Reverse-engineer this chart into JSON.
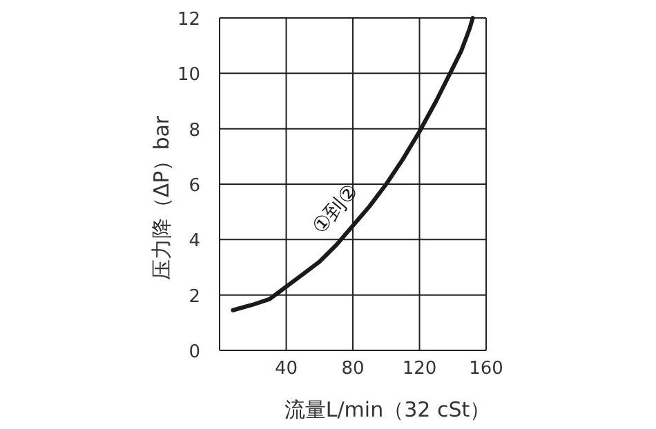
{
  "chart_data": {
    "type": "line",
    "xlabel": "流量L/min（32 cSt）",
    "ylabel": "压力降（ΔP）bar",
    "xlim": [
      0,
      160
    ],
    "ylim": [
      0,
      12
    ],
    "xticks": [
      {
        "value": 0,
        "label": null
      },
      40,
      80,
      120,
      160
    ],
    "yticks": [
      0,
      2,
      4,
      6,
      8,
      10,
      12
    ],
    "grid": true,
    "series": [
      {
        "name": "①到②",
        "color": "#1a1a1a",
        "x": [
          8,
          20,
          30,
          40,
          50,
          60,
          70,
          80,
          90,
          100,
          110,
          120,
          130,
          140,
          145,
          150,
          152
        ],
        "values": [
          1.45,
          1.65,
          1.85,
          2.3,
          2.75,
          3.2,
          3.8,
          4.5,
          5.2,
          6.0,
          6.9,
          7.9,
          9.0,
          10.2,
          10.8,
          11.6,
          12
        ]
      }
    ]
  }
}
